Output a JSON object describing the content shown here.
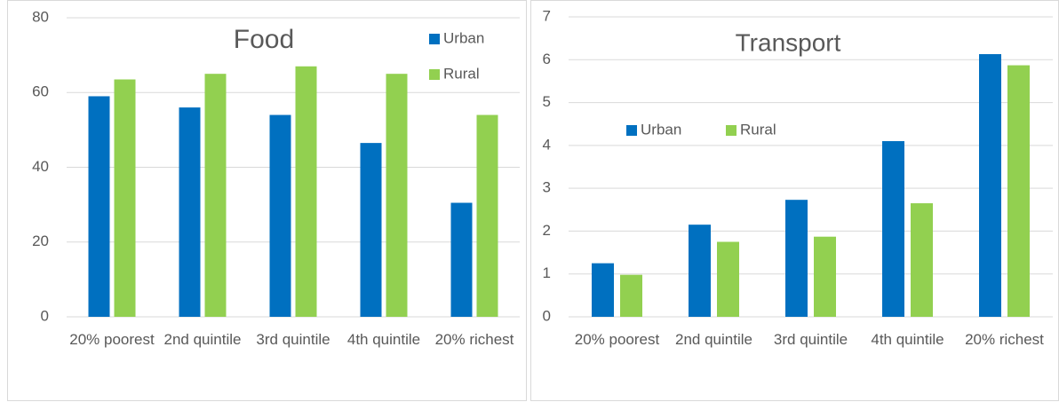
{
  "chart_data": [
    {
      "type": "bar",
      "title": "Food",
      "categories": [
        "20% poorest",
        "2nd quintile",
        "3rd quintile",
        "4th quintile",
        "20% richest"
      ],
      "series": [
        {
          "name": "Urban",
          "color": "#0070c0",
          "values": [
            59,
            56,
            54,
            46.5,
            30.5
          ]
        },
        {
          "name": "Rural",
          "color": "#92d050",
          "values": [
            63.5,
            65,
            67,
            65,
            54
          ]
        }
      ],
      "ylim": [
        0,
        80
      ],
      "yticks": [
        0,
        20,
        40,
        60,
        80
      ],
      "grid": true,
      "legend": "top-right"
    },
    {
      "type": "bar",
      "title": "Transport",
      "categories": [
        "20% poorest",
        "2nd quintile",
        "3rd quintile",
        "4th quintile",
        "20% richest"
      ],
      "series": [
        {
          "name": "Urban",
          "color": "#0070c0",
          "values": [
            1.25,
            2.15,
            2.73,
            4.1,
            6.13
          ]
        },
        {
          "name": "Rural",
          "color": "#92d050",
          "values": [
            0.98,
            1.75,
            1.87,
            2.65,
            5.87
          ]
        }
      ],
      "ylim": [
        0,
        7
      ],
      "yticks": [
        0,
        1,
        2,
        3,
        4,
        5,
        6,
        7
      ],
      "grid": true,
      "legend": "top-left"
    }
  ]
}
